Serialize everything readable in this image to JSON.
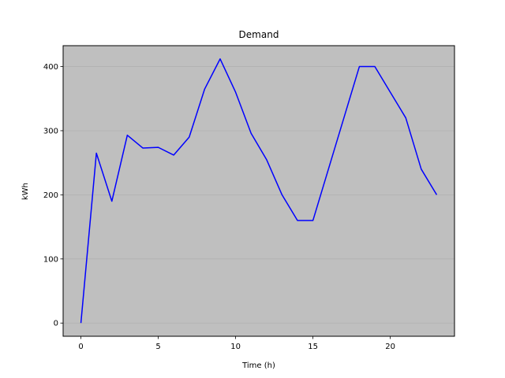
{
  "chart_data": {
    "type": "line",
    "title": "Demand",
    "xlabel": "Time (h)",
    "ylabel": "kWh",
    "xlim": [
      -1.15,
      24.15
    ],
    "ylim": [
      -20.6,
      432.6
    ],
    "xticks": [
      0,
      5,
      10,
      15,
      20
    ],
    "yticks": [
      0,
      100,
      200,
      300,
      400
    ],
    "grid": "horizontal",
    "colors": {
      "line": "#0000ff",
      "plot_background": "#bfbfbf",
      "grid": "#b0b0b0"
    },
    "series": [
      {
        "x": [
          0,
          1,
          2,
          3,
          4,
          5,
          6,
          7,
          8,
          9,
          10,
          11,
          12,
          13,
          14,
          15,
          16,
          17,
          18,
          19,
          20,
          21,
          22,
          23
        ],
        "values": [
          0,
          265,
          190,
          293,
          273,
          274,
          262,
          290,
          365,
          412,
          360,
          296,
          255,
          200,
          160,
          160,
          240,
          320,
          400,
          400,
          360,
          320,
          240,
          200
        ]
      }
    ]
  }
}
